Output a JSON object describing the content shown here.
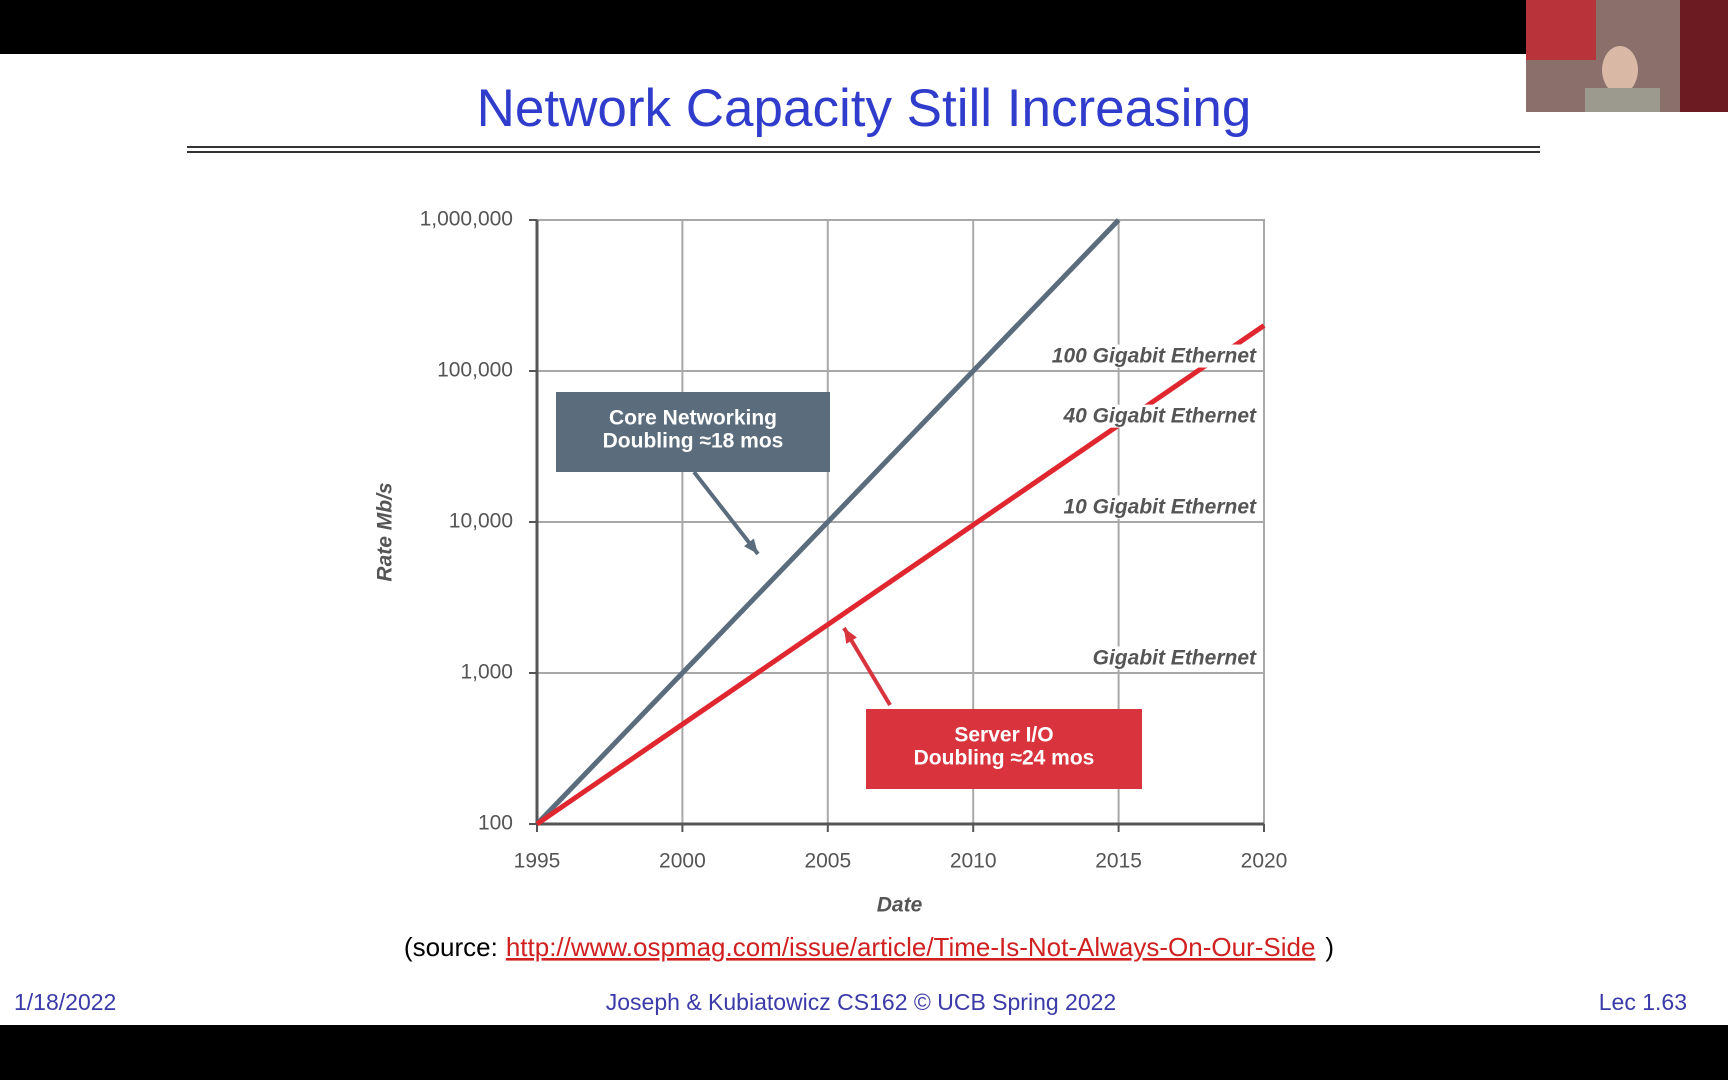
{
  "slide": {
    "title": "Network Capacity Still Increasing",
    "source_prefix": "(source:",
    "source_link": "http://www.ospmag.com/issue/article/Time-Is-Not-Always-On-Our-Side",
    "source_suffix": ")",
    "footer": {
      "date": "1/18/2022",
      "course": "Joseph & Kubiatowicz CS162 © UCB Spring 2022",
      "page": "Lec 1.63"
    }
  },
  "chart_data": {
    "type": "line",
    "xlabel": "Date",
    "ylabel": "Rate Mb/s",
    "xlim": [
      1995,
      2020
    ],
    "xticks": [
      1995,
      2000,
      2005,
      2010,
      2015,
      2020
    ],
    "ylim": [
      100,
      1000000
    ],
    "yticks": [
      {
        "value": 100,
        "label": "100"
      },
      {
        "value": 1000,
        "label": "1,000"
      },
      {
        "value": 10000,
        "label": "10,000"
      },
      {
        "value": 100000,
        "label": "100,000"
      },
      {
        "value": 1000000,
        "label": "1,000,000"
      }
    ],
    "log_scale": true,
    "grid": true,
    "series": [
      {
        "color": "#5b6c7c",
        "x": [
          1995,
          2015
        ],
        "values": [
          100,
          1000000
        ]
      },
      {
        "color": "#e0262f",
        "x": [
          1995,
          2020
        ],
        "values": [
          100,
          200000
        ]
      }
    ],
    "ethernet_labels": [
      {
        "text": "100 Gigabit Ethernet",
        "value": 100000
      },
      {
        "text": "40 Gigabit Ethernet",
        "value": 40000
      },
      {
        "text": "10 Gigabit Ethernet",
        "value": 10000
      },
      {
        "text": "Gigabit Ethernet",
        "value": 1000
      }
    ],
    "callouts": [
      {
        "lines": [
          "Core Networking",
          "Doubling ≈18 mos"
        ],
        "color": "#5b6c7c"
      },
      {
        "lines": [
          "Server I/O",
          "Doubling ≈24 mos"
        ],
        "color": "#d9343d"
      }
    ]
  }
}
